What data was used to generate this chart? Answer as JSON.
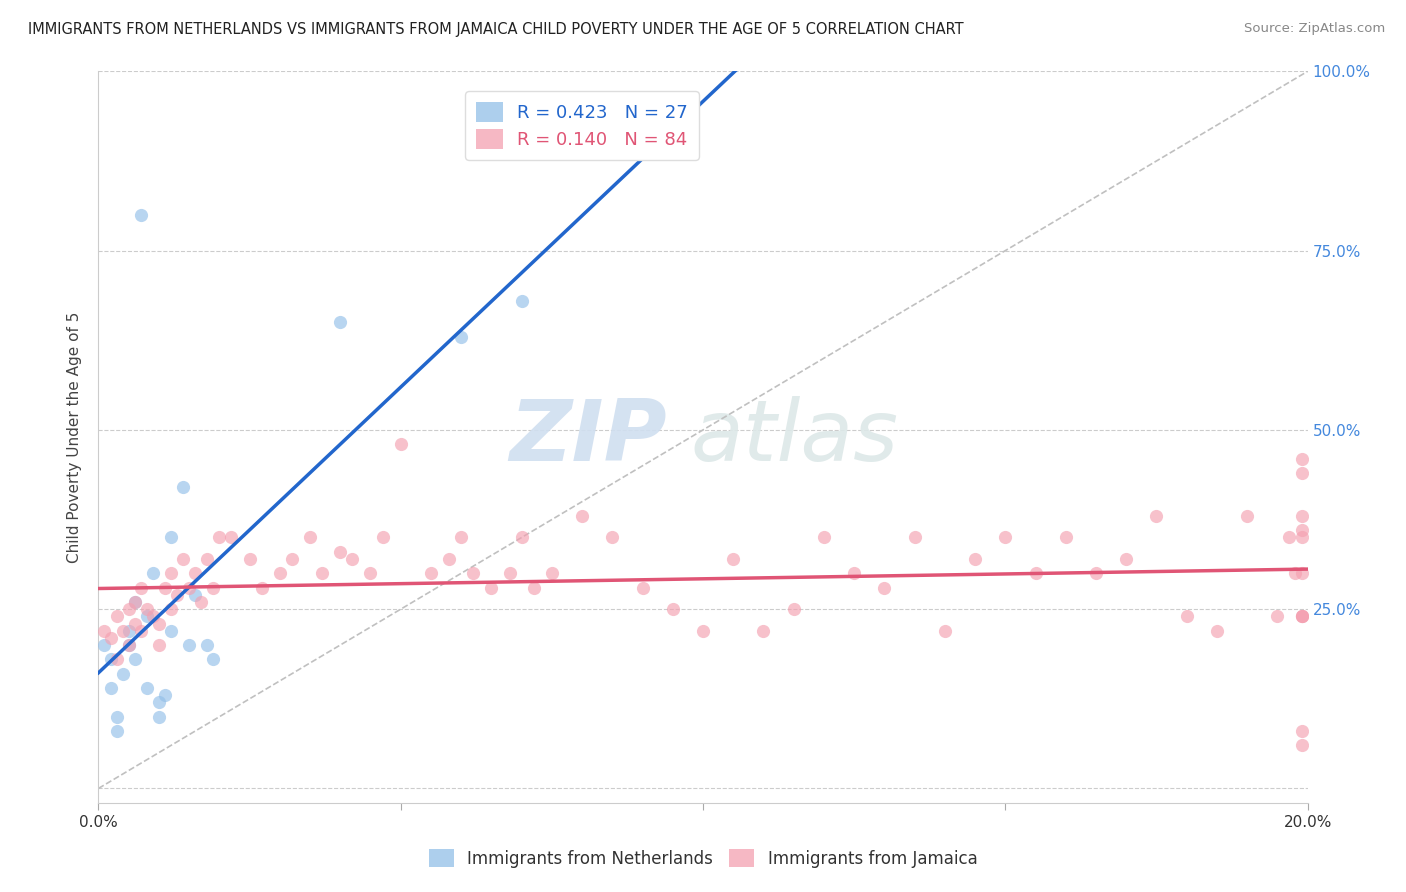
{
  "title": "IMMIGRANTS FROM NETHERLANDS VS IMMIGRANTS FROM JAMAICA CHILD POVERTY UNDER THE AGE OF 5 CORRELATION CHART",
  "source": "Source: ZipAtlas.com",
  "ylabel": "Child Poverty Under the Age of 5",
  "xlim": [
    0,
    0.2
  ],
  "ylim": [
    -0.02,
    1.0
  ],
  "netherlands_r": 0.423,
  "netherlands_n": 27,
  "jamaica_r": 0.14,
  "jamaica_n": 84,
  "netherlands_color": "#92bfe8",
  "jamaica_color": "#f4a0b0",
  "netherlands_line_color": "#2266cc",
  "jamaica_line_color": "#e05575",
  "background_color": "#ffffff",
  "watermark_zip": "ZIP",
  "watermark_atlas": "atlas",
  "nl_x": [
    0.001,
    0.002,
    0.002,
    0.003,
    0.003,
    0.004,
    0.005,
    0.005,
    0.006,
    0.006,
    0.007,
    0.008,
    0.008,
    0.009,
    0.01,
    0.01,
    0.011,
    0.012,
    0.012,
    0.014,
    0.015,
    0.016,
    0.018,
    0.019,
    0.04,
    0.06,
    0.07
  ],
  "nl_y": [
    0.2,
    0.18,
    0.14,
    0.1,
    0.08,
    0.16,
    0.22,
    0.2,
    0.26,
    0.18,
    0.8,
    0.24,
    0.14,
    0.3,
    0.12,
    0.1,
    0.13,
    0.35,
    0.22,
    0.42,
    0.2,
    0.27,
    0.2,
    0.18,
    0.65,
    0.63,
    0.68
  ],
  "jm_x": [
    0.001,
    0.002,
    0.003,
    0.003,
    0.004,
    0.005,
    0.005,
    0.006,
    0.006,
    0.007,
    0.007,
    0.008,
    0.009,
    0.01,
    0.01,
    0.011,
    0.012,
    0.012,
    0.013,
    0.014,
    0.015,
    0.016,
    0.017,
    0.018,
    0.019,
    0.02,
    0.022,
    0.025,
    0.027,
    0.03,
    0.032,
    0.035,
    0.037,
    0.04,
    0.042,
    0.045,
    0.047,
    0.05,
    0.055,
    0.058,
    0.06,
    0.062,
    0.065,
    0.068,
    0.07,
    0.072,
    0.075,
    0.08,
    0.085,
    0.09,
    0.095,
    0.1,
    0.105,
    0.11,
    0.115,
    0.12,
    0.125,
    0.13,
    0.135,
    0.14,
    0.145,
    0.15,
    0.155,
    0.16,
    0.165,
    0.17,
    0.175,
    0.18,
    0.185,
    0.19,
    0.195,
    0.197,
    0.198,
    0.199,
    0.199,
    0.199,
    0.199,
    0.199,
    0.199,
    0.199,
    0.199,
    0.199,
    0.199,
    0.199
  ],
  "jm_y": [
    0.22,
    0.21,
    0.24,
    0.18,
    0.22,
    0.25,
    0.2,
    0.26,
    0.23,
    0.22,
    0.28,
    0.25,
    0.24,
    0.2,
    0.23,
    0.28,
    0.3,
    0.25,
    0.27,
    0.32,
    0.28,
    0.3,
    0.26,
    0.32,
    0.28,
    0.35,
    0.35,
    0.32,
    0.28,
    0.3,
    0.32,
    0.35,
    0.3,
    0.33,
    0.32,
    0.3,
    0.35,
    0.48,
    0.3,
    0.32,
    0.35,
    0.3,
    0.28,
    0.3,
    0.35,
    0.28,
    0.3,
    0.38,
    0.35,
    0.28,
    0.25,
    0.22,
    0.32,
    0.22,
    0.25,
    0.35,
    0.3,
    0.28,
    0.35,
    0.22,
    0.32,
    0.35,
    0.3,
    0.35,
    0.3,
    0.32,
    0.38,
    0.24,
    0.22,
    0.38,
    0.24,
    0.35,
    0.3,
    0.35,
    0.3,
    0.38,
    0.24,
    0.46,
    0.08,
    0.44,
    0.36,
    0.24,
    0.06,
    0.24
  ]
}
